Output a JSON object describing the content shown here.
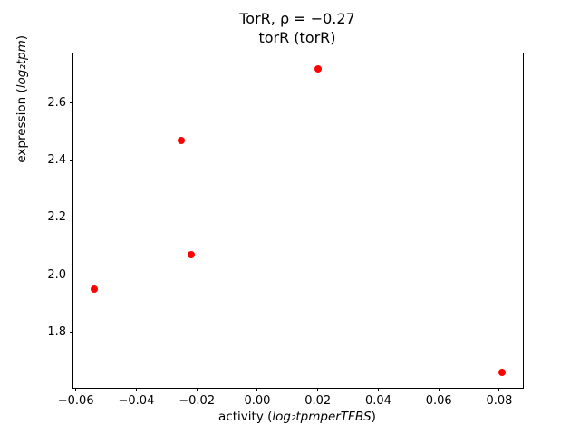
{
  "chart_data": {
    "type": "scatter",
    "title_line1": "TorR, ρ = −0.27",
    "title_line2": "torR (torR)",
    "xlabel_prefix": "activity (",
    "xlabel_math": "log₂tpmperTFBS",
    "xlabel_suffix": ")",
    "ylabel_prefix": "expression (",
    "ylabel_math": "log₂tpm",
    "ylabel_suffix": ")",
    "marker_color": "#ff0000",
    "xlim": [
      -0.0608,
      0.0878
    ],
    "ylim": [
      1.607,
      2.773
    ],
    "xticks": [
      {
        "v": -0.06,
        "label": "−0.06"
      },
      {
        "v": -0.04,
        "label": "−0.04"
      },
      {
        "v": -0.02,
        "label": "−0.02"
      },
      {
        "v": 0.0,
        "label": "0.00"
      },
      {
        "v": 0.02,
        "label": "0.02"
      },
      {
        "v": 0.04,
        "label": "0.04"
      },
      {
        "v": 0.06,
        "label": "0.06"
      },
      {
        "v": 0.08,
        "label": "0.08"
      }
    ],
    "yticks": [
      {
        "v": 1.8,
        "label": "1.8"
      },
      {
        "v": 2.0,
        "label": "2.0"
      },
      {
        "v": 2.2,
        "label": "2.2"
      },
      {
        "v": 2.4,
        "label": "2.4"
      },
      {
        "v": 2.6,
        "label": "2.6"
      }
    ],
    "points": [
      {
        "x": -0.054,
        "y": 1.95
      },
      {
        "x": -0.025,
        "y": 2.47
      },
      {
        "x": -0.022,
        "y": 2.07
      },
      {
        "x": 0.02,
        "y": 2.72
      },
      {
        "x": 0.081,
        "y": 1.66
      }
    ]
  }
}
